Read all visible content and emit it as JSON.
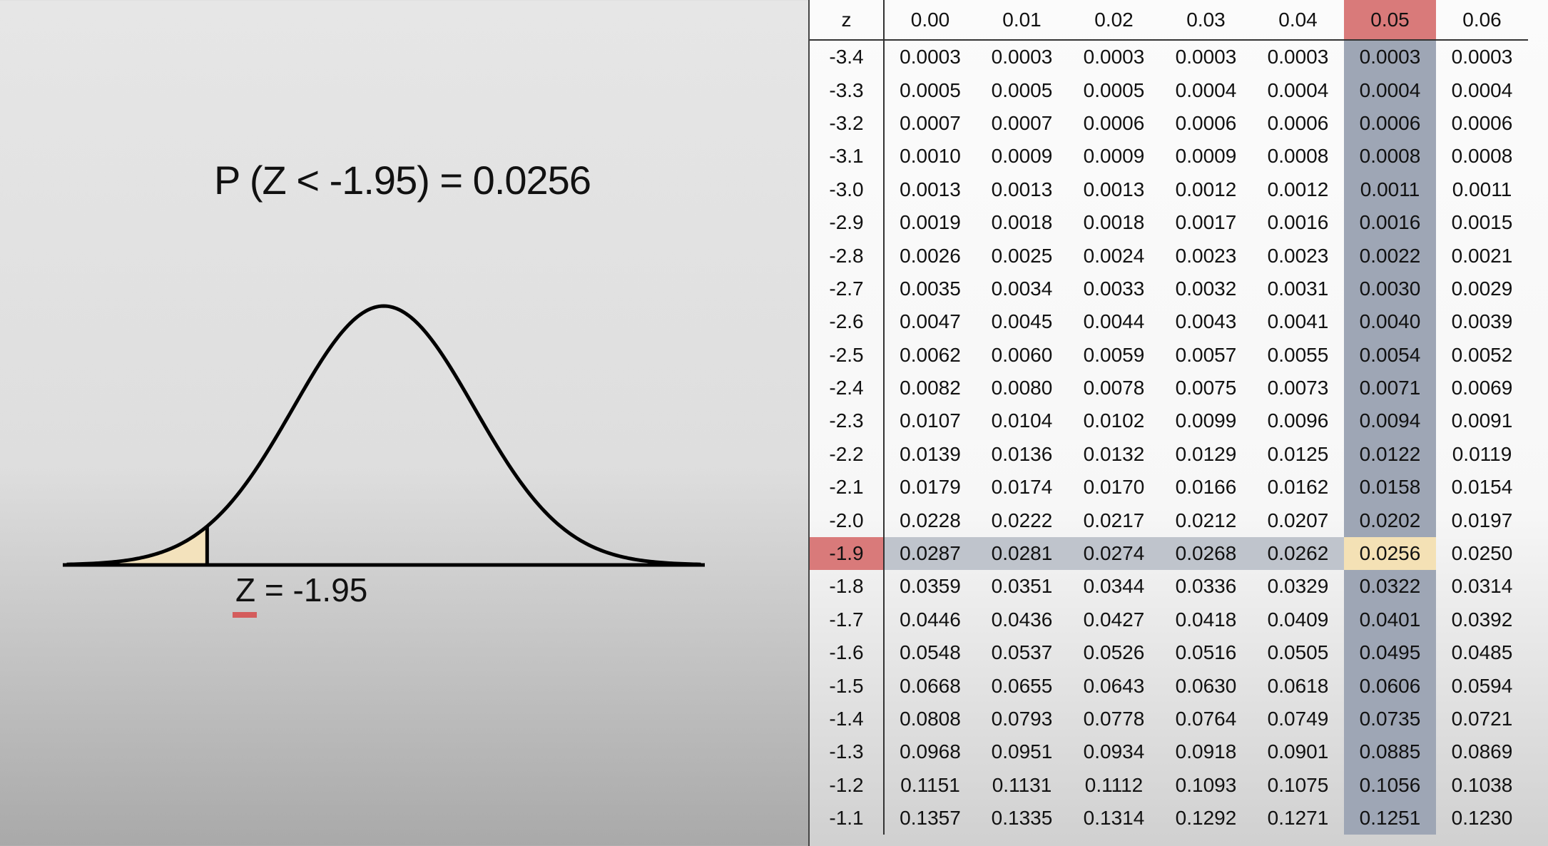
{
  "probability_title": "P (Z < -1.95) = 0.0256",
  "z_label": {
    "var": "Z",
    "rest": " = -1.95"
  },
  "colors": {
    "shaded_area": "#f3e2bc",
    "highlight_column": "#9ea6b5",
    "highlight_header": "#d97a7a",
    "highlight_row": "#bfc4cc",
    "answer_cell": "#f4e1b5",
    "underline": "#d45c5c"
  },
  "curve": {
    "shaded_tail_z": -1.95
  },
  "table": {
    "corner": "z",
    "columns": [
      "0.00",
      "0.01",
      "0.02",
      "0.03",
      "0.04",
      "0.05",
      "0.06"
    ],
    "highlight_column_index": 5,
    "highlight_row_z": "-1.9",
    "rows": [
      {
        "z": "-3.4",
        "values": [
          "0.0003",
          "0.0003",
          "0.0003",
          "0.0003",
          "0.0003",
          "0.0003",
          "0.0003"
        ]
      },
      {
        "z": "-3.3",
        "values": [
          "0.0005",
          "0.0005",
          "0.0005",
          "0.0004",
          "0.0004",
          "0.0004",
          "0.0004"
        ]
      },
      {
        "z": "-3.2",
        "values": [
          "0.0007",
          "0.0007",
          "0.0006",
          "0.0006",
          "0.0006",
          "0.0006",
          "0.0006"
        ]
      },
      {
        "z": "-3.1",
        "values": [
          "0.0010",
          "0.0009",
          "0.0009",
          "0.0009",
          "0.0008",
          "0.0008",
          "0.0008"
        ]
      },
      {
        "z": "-3.0",
        "values": [
          "0.0013",
          "0.0013",
          "0.0013",
          "0.0012",
          "0.0012",
          "0.0011",
          "0.0011"
        ]
      },
      {
        "z": "-2.9",
        "values": [
          "0.0019",
          "0.0018",
          "0.0018",
          "0.0017",
          "0.0016",
          "0.0016",
          "0.0015"
        ]
      },
      {
        "z": "-2.8",
        "values": [
          "0.0026",
          "0.0025",
          "0.0024",
          "0.0023",
          "0.0023",
          "0.0022",
          "0.0021"
        ]
      },
      {
        "z": "-2.7",
        "values": [
          "0.0035",
          "0.0034",
          "0.0033",
          "0.0032",
          "0.0031",
          "0.0030",
          "0.0029"
        ]
      },
      {
        "z": "-2.6",
        "values": [
          "0.0047",
          "0.0045",
          "0.0044",
          "0.0043",
          "0.0041",
          "0.0040",
          "0.0039"
        ]
      },
      {
        "z": "-2.5",
        "values": [
          "0.0062",
          "0.0060",
          "0.0059",
          "0.0057",
          "0.0055",
          "0.0054",
          "0.0052"
        ]
      },
      {
        "z": "-2.4",
        "values": [
          "0.0082",
          "0.0080",
          "0.0078",
          "0.0075",
          "0.0073",
          "0.0071",
          "0.0069"
        ]
      },
      {
        "z": "-2.3",
        "values": [
          "0.0107",
          "0.0104",
          "0.0102",
          "0.0099",
          "0.0096",
          "0.0094",
          "0.0091"
        ]
      },
      {
        "z": "-2.2",
        "values": [
          "0.0139",
          "0.0136",
          "0.0132",
          "0.0129",
          "0.0125",
          "0.0122",
          "0.0119"
        ]
      },
      {
        "z": "-2.1",
        "values": [
          "0.0179",
          "0.0174",
          "0.0170",
          "0.0166",
          "0.0162",
          "0.0158",
          "0.0154"
        ]
      },
      {
        "z": "-2.0",
        "values": [
          "0.0228",
          "0.0222",
          "0.0217",
          "0.0212",
          "0.0207",
          "0.0202",
          "0.0197"
        ]
      },
      {
        "z": "-1.9",
        "values": [
          "0.0287",
          "0.0281",
          "0.0274",
          "0.0268",
          "0.0262",
          "0.0256",
          "0.0250"
        ]
      },
      {
        "z": "-1.8",
        "values": [
          "0.0359",
          "0.0351",
          "0.0344",
          "0.0336",
          "0.0329",
          "0.0322",
          "0.0314"
        ]
      },
      {
        "z": "-1.7",
        "values": [
          "0.0446",
          "0.0436",
          "0.0427",
          "0.0418",
          "0.0409",
          "0.0401",
          "0.0392"
        ]
      },
      {
        "z": "-1.6",
        "values": [
          "0.0548",
          "0.0537",
          "0.0526",
          "0.0516",
          "0.0505",
          "0.0495",
          "0.0485"
        ]
      },
      {
        "z": "-1.5",
        "values": [
          "0.0668",
          "0.0655",
          "0.0643",
          "0.0630",
          "0.0618",
          "0.0606",
          "0.0594"
        ]
      },
      {
        "z": "-1.4",
        "values": [
          "0.0808",
          "0.0793",
          "0.0778",
          "0.0764",
          "0.0749",
          "0.0735",
          "0.0721"
        ]
      },
      {
        "z": "-1.3",
        "values": [
          "0.0968",
          "0.0951",
          "0.0934",
          "0.0918",
          "0.0901",
          "0.0885",
          "0.0869"
        ]
      },
      {
        "z": "-1.2",
        "values": [
          "0.1151",
          "0.1131",
          "0.1112",
          "0.1093",
          "0.1075",
          "0.1056",
          "0.1038"
        ]
      },
      {
        "z": "-1.1",
        "values": [
          "0.1357",
          "0.1335",
          "0.1314",
          "0.1292",
          "0.1271",
          "0.1251",
          "0.1230"
        ]
      }
    ]
  }
}
